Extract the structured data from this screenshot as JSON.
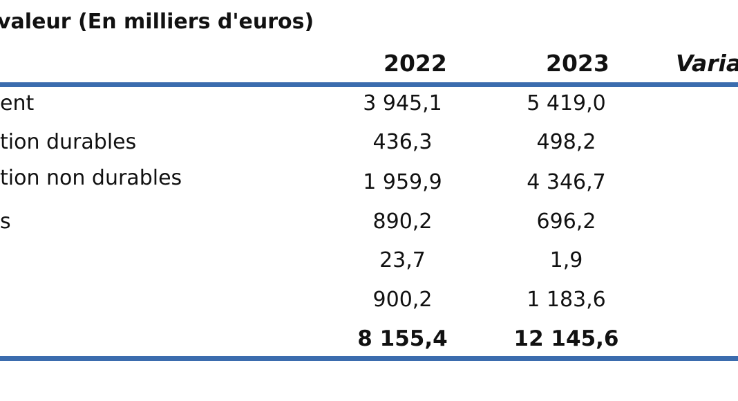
{
  "title": "valeur (En milliers d'euros)",
  "headers": {
    "year1": "2022",
    "year2": "2023",
    "variation": "Varia"
  },
  "rows": [
    {
      "label": "ent",
      "v2022": "3 945,1",
      "v2023": "5 419,0"
    },
    {
      "label": "tion durables",
      "v2022": "436,3",
      "v2023": "498,2"
    },
    {
      "label": "tion non durables",
      "v2022": "1 959,9",
      "v2023": "4 346,7"
    },
    {
      "label": "s",
      "v2022": "890,2",
      "v2023": "696,2"
    },
    {
      "label": "",
      "v2022": "23,7",
      "v2023": "1,9"
    },
    {
      "label": "",
      "v2022": "900,2",
      "v2023": "1 183,6"
    }
  ],
  "total": {
    "label": "",
    "v2022": "8 155,4",
    "v2023": "12 145,6"
  },
  "colors": {
    "rule": "#3b6cae"
  }
}
